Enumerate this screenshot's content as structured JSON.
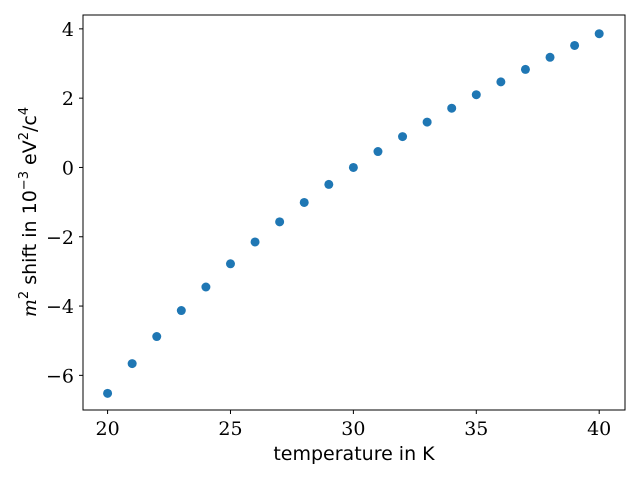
{
  "chart_data": {
    "type": "scatter",
    "xlabel": "temperature in K",
    "ylabel": {
      "symbol": "m",
      "symbol_exp": "2",
      "mid": " shift in 10",
      "mid_exp": "−3",
      "unit_a": " eV",
      "unit_a_exp": "2",
      "unit_b": "/c",
      "unit_b_exp": "4"
    },
    "xlim": [
      19,
      41.05
    ],
    "ylim": [
      -7.0,
      4.4
    ],
    "xticks": [
      20,
      25,
      30,
      35,
      40
    ],
    "yticks": [
      -6,
      -4,
      -2,
      0,
      2,
      4
    ],
    "grid": false,
    "series": [
      {
        "color": "#1f77b4",
        "x": [
          20,
          21,
          22,
          23,
          24,
          25,
          26,
          27,
          28,
          29,
          30,
          31,
          32,
          33,
          34,
          35,
          36,
          37,
          38,
          39,
          40
        ],
        "y": [
          -6.52,
          -5.66,
          -4.88,
          -4.13,
          -3.45,
          -2.78,
          -2.15,
          -1.57,
          -1.01,
          -0.49,
          0.0,
          0.46,
          0.89,
          1.31,
          1.71,
          2.1,
          2.47,
          2.83,
          3.18,
          3.52,
          3.86
        ]
      }
    ]
  }
}
